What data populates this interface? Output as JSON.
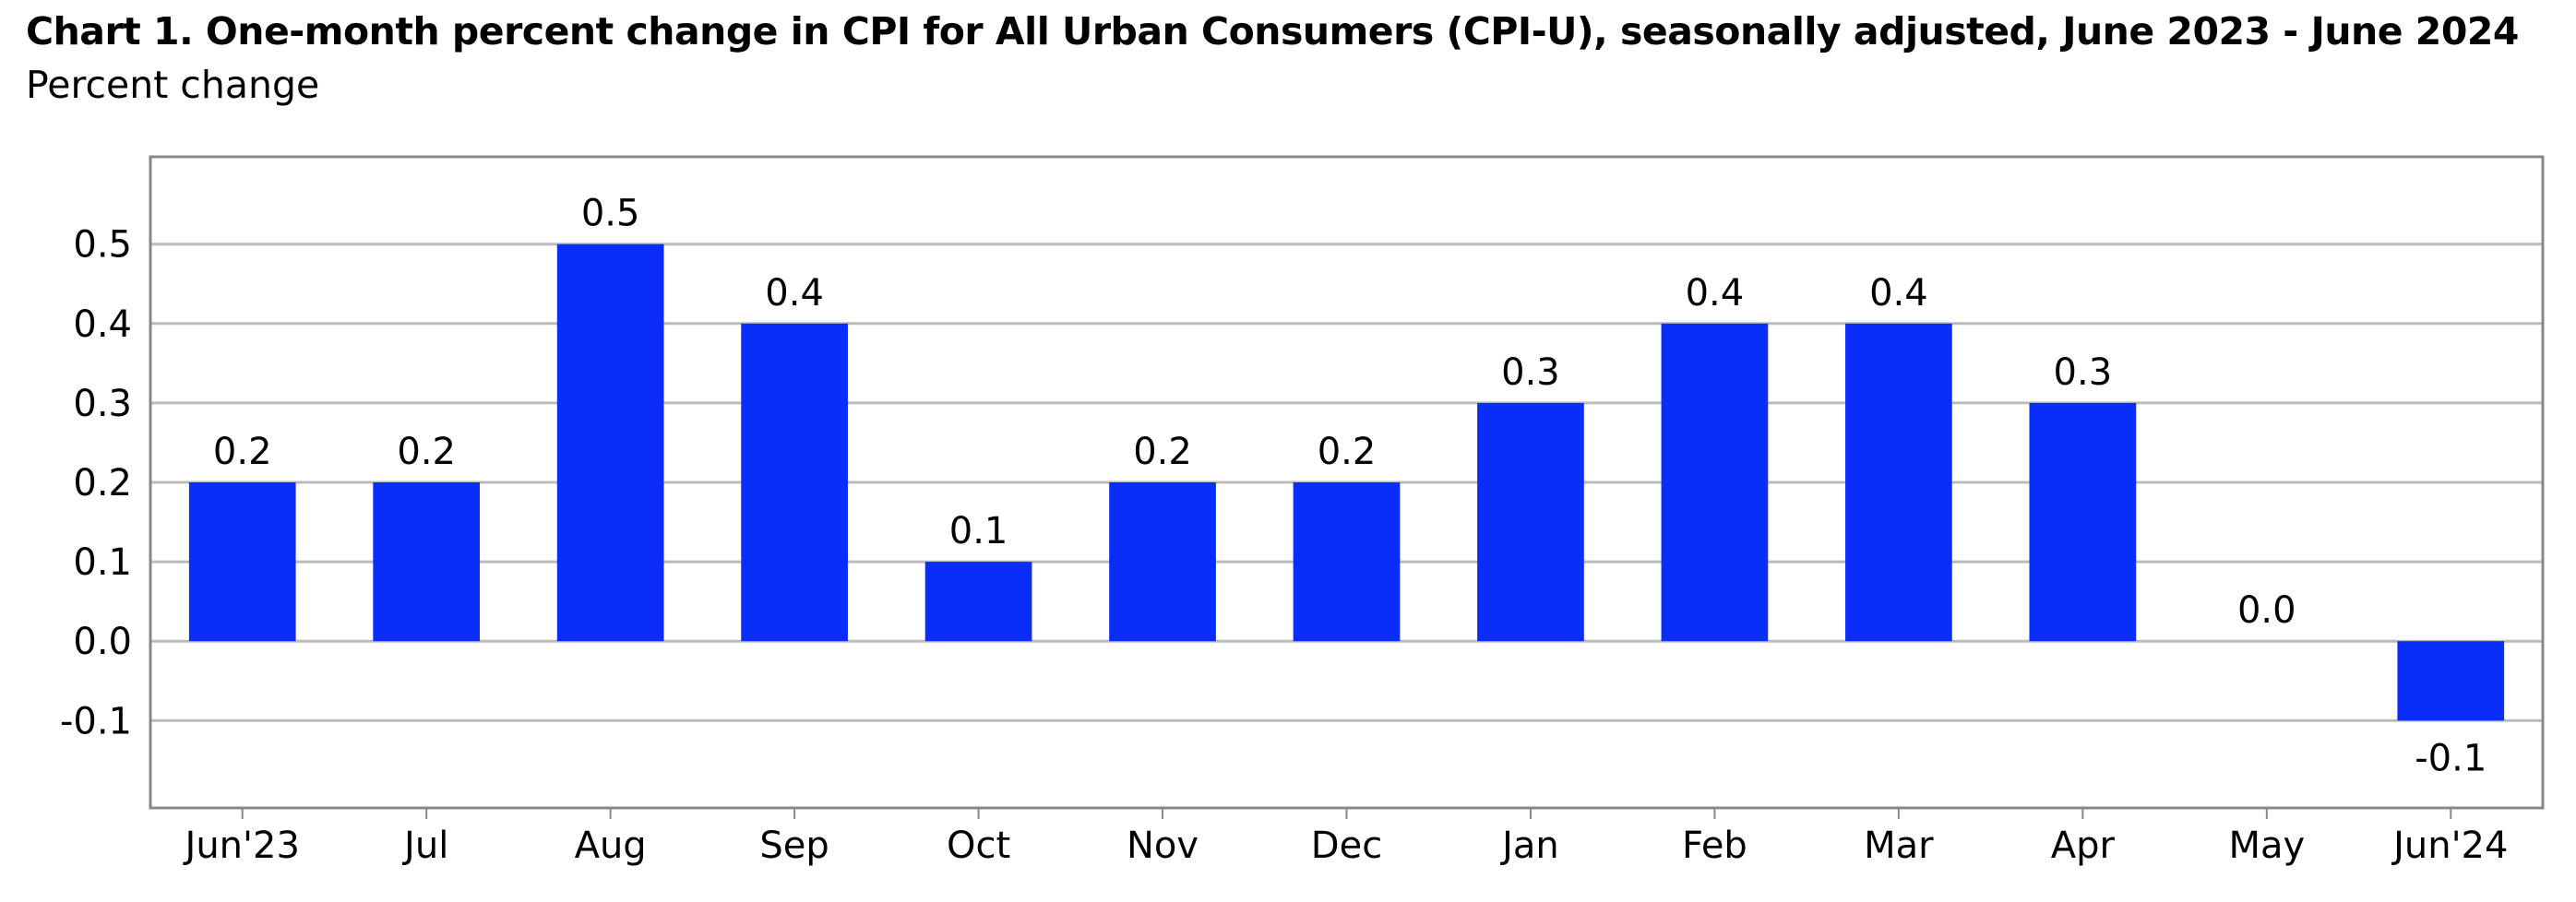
{
  "chart_data": {
    "type": "bar",
    "title": "Chart 1. One-month percent change in CPI for All Urban Consumers (CPI-U), seasonally adjusted, June 2023 - June 2024",
    "subtitle": "Percent change",
    "categories": [
      "Jun'23",
      "Jul",
      "Aug",
      "Sep",
      "Oct",
      "Nov",
      "Dec",
      "Jan",
      "Feb",
      "Mar",
      "Apr",
      "May",
      "Jun'24"
    ],
    "values": [
      0.2,
      0.2,
      0.5,
      0.4,
      0.1,
      0.2,
      0.2,
      0.3,
      0.4,
      0.4,
      0.3,
      0.0,
      -0.1
    ],
    "value_labels": [
      "0.2",
      "0.2",
      "0.5",
      "0.4",
      "0.1",
      "0.2",
      "0.2",
      "0.3",
      "0.4",
      "0.4",
      "0.3",
      "0.0",
      "-0.1"
    ],
    "y_ticks": [
      -0.1,
      0.0,
      0.1,
      0.2,
      0.3,
      0.4,
      0.5
    ],
    "y_tick_labels": [
      "-0.1",
      "0.0",
      "0.1",
      "0.2",
      "0.3",
      "0.4",
      "0.5"
    ],
    "ylim": [
      -0.21,
      0.61
    ],
    "xlabel": "",
    "ylabel": "",
    "grid": true,
    "bar_color": "#0a2dfa",
    "grid_color": "#bbbbbb",
    "frame_color": "#888888"
  }
}
